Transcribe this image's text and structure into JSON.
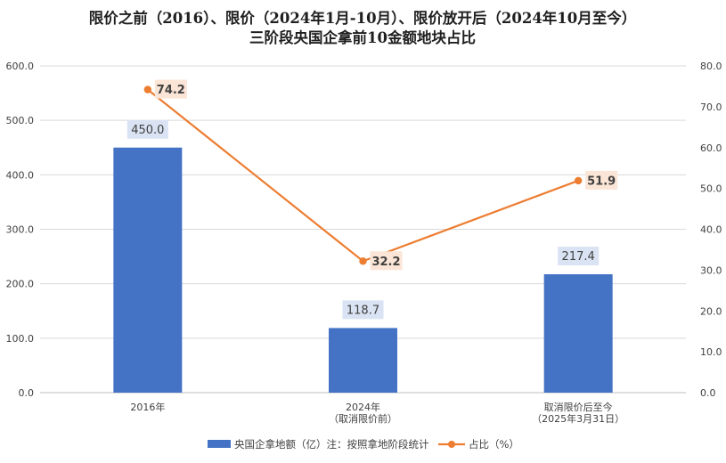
{
  "chart_data": {
    "type": "bar",
    "title": [
      "限价之前（2016）、限价（2024年1月-10月）、限价放开后（2024年10月至今）",
      "三阶段央国企拿前10金额地块占比"
    ],
    "categories": [
      [
        "2016年"
      ],
      [
        "2024年",
        "（取消限价前）"
      ],
      [
        "取消限价后至今",
        "（2025年3月31日）"
      ]
    ],
    "series": [
      {
        "name": "央国企拿地额（亿）注：按照拿地阶段统计",
        "type": "bar",
        "axis": "left",
        "values": [
          450.0,
          118.7,
          217.4
        ],
        "labels": [
          "450.0",
          "118.7",
          "217.4"
        ],
        "color": "#4472c4"
      },
      {
        "name": "占比（%）",
        "type": "line",
        "axis": "right",
        "values": [
          74.2,
          32.2,
          51.9
        ],
        "labels": [
          "74.2",
          "32.2",
          "51.9"
        ],
        "color": "#ed7d31"
      }
    ],
    "y_left": {
      "min": 0,
      "max": 600,
      "step": 100,
      "ticks": [
        "0.0",
        "100.0",
        "200.0",
        "300.0",
        "400.0",
        "500.0",
        "600.0"
      ]
    },
    "y_right": {
      "min": 0,
      "max": 80,
      "step": 10,
      "ticks": [
        "0.0",
        "10.0",
        "20.0",
        "30.0",
        "40.0",
        "50.0",
        "60.0",
        "70.0",
        "80.0"
      ]
    },
    "grid": true,
    "legend": "bottom"
  }
}
